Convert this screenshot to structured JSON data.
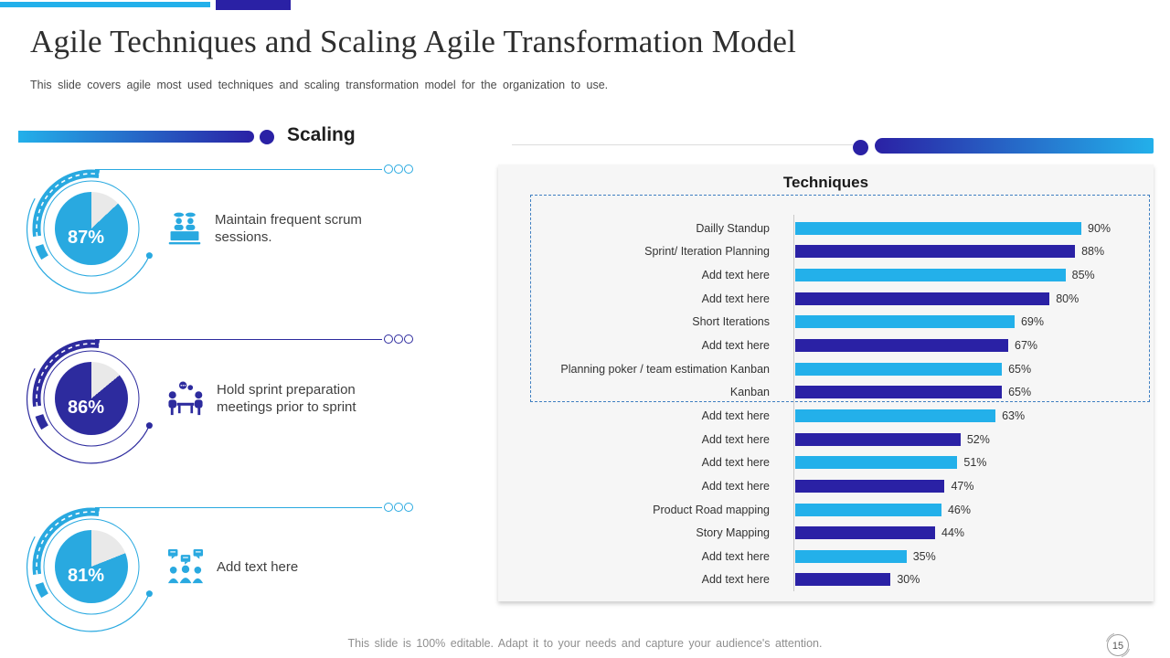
{
  "slide": {
    "title": "Agile Techniques and Scaling Agile Transformation Model",
    "subtitle": "This slide covers agile most used techniques and scaling transformation model for the organization to use."
  },
  "colors": {
    "accent_light": "#23b0ea",
    "accent_dark": "#2a21a5",
    "gauge_light": "#29a9e0",
    "gauge_dark": "#2d2b9e",
    "pie_remainder": "#e9e9e9",
    "panel_bg": "#f6f6f6",
    "dashed_box_border": "#3f7fc1"
  },
  "scaling_section": {
    "heading": "Scaling",
    "items": [
      {
        "percent": "87%",
        "value": 87,
        "text": "Maintain frequent scrum sessions.",
        "theme": "light",
        "icon": "scrum-session-icon"
      },
      {
        "percent": "86%",
        "value": 86,
        "text": "Hold sprint preparation meetings prior to sprint",
        "theme": "dark",
        "icon": "sprint-meeting-icon"
      },
      {
        "percent": "81%",
        "value": 81,
        "text": "Add text here",
        "theme": "light",
        "icon": "team-discussion-icon"
      }
    ]
  },
  "chart_data": {
    "type": "bar",
    "orientation": "horizontal",
    "title": "Techniques",
    "categories": [
      "Dailly Standup",
      "Sprint/ Iteration Planning",
      "Add text here",
      "Add text here",
      "Short Iterations",
      "Add text here",
      "Planning poker / team estimation Kanban",
      "Kanban",
      "Add text here",
      "Add text here",
      "Add text here",
      "Add text here",
      "Product Road mapping",
      "Story Mapping",
      "Add text here",
      "Add text here"
    ],
    "values": [
      90,
      88,
      85,
      80,
      69,
      67,
      65,
      65,
      63,
      52,
      51,
      47,
      46,
      44,
      35,
      30
    ],
    "value_labels": [
      "90%",
      "88%",
      "85%",
      "80%",
      "69%",
      "67%",
      "65%",
      "65%",
      "63%",
      "52%",
      "51%",
      "47%",
      "46%",
      "44%",
      "35%",
      "30%"
    ],
    "bar_color_pattern": [
      "#23b0ea",
      "#2a21a5"
    ],
    "xlim": [
      0,
      100
    ],
    "grid": false,
    "legend": "none",
    "dashed_highlight_box_rows": [
      1,
      8
    ]
  },
  "footer": {
    "note": "This slide is 100% editable. Adapt it to your needs and capture your audience's attention.",
    "page_number": "15"
  }
}
